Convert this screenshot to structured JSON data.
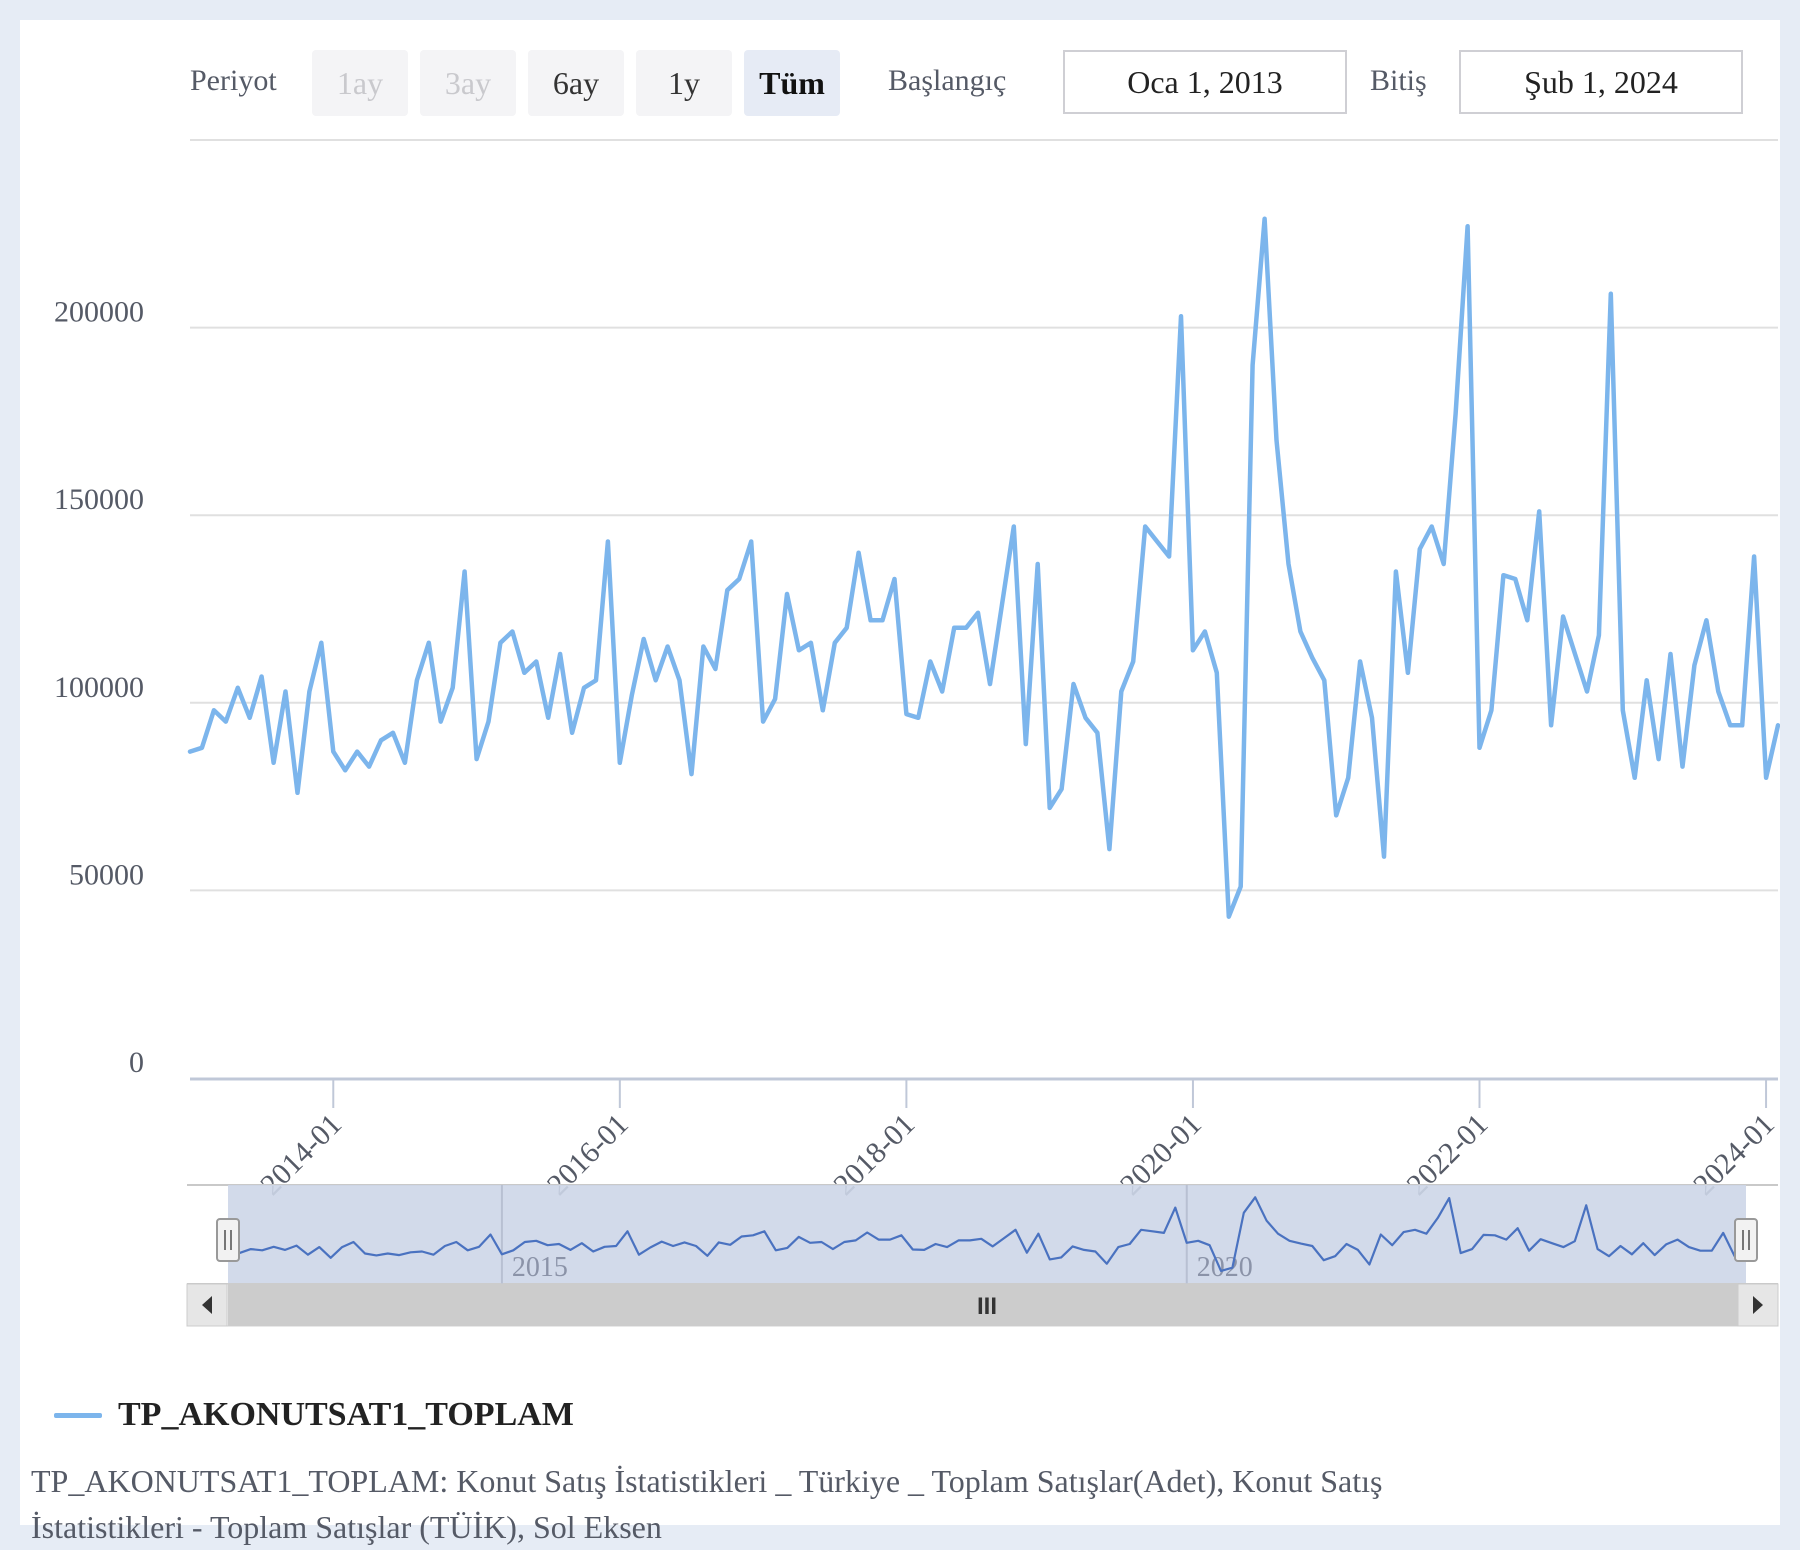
{
  "toolbar": {
    "period_label": "Periyot",
    "buttons": [
      "1ay",
      "3ay",
      "6ay",
      "1y",
      "Tüm"
    ],
    "start_label": "Başlangıç",
    "start_value": "Oca 1, 2013",
    "end_label": "Bitiş",
    "end_value": "Şub 1, 2024"
  },
  "chart_data": {
    "type": "line",
    "x_start": "2013-01",
    "x_end": "2024-02",
    "x_interval": "monthly",
    "ylim": [
      0,
      250000
    ],
    "yticks": [
      0,
      50000,
      100000,
      150000,
      200000
    ],
    "ytick_labels": [
      "0",
      "50000",
      "100000",
      "150000",
      "200000"
    ],
    "xtick_labels": [
      "2014-01",
      "2016-01",
      "2018-01",
      "2020-01",
      "2022-01",
      "2024-01"
    ],
    "grid": true,
    "legend": "bottom-left",
    "series": [
      {
        "name": "TP_AKONUTSAT1_TOPLAM",
        "color": "#7cb5ec",
        "values": [
          87000,
          88000,
          98000,
          95000,
          104000,
          96000,
          107000,
          84000,
          103000,
          76000,
          103000,
          116000,
          87000,
          82000,
          87000,
          83000,
          90000,
          92000,
          84000,
          106000,
          116000,
          95000,
          104000,
          135000,
          85000,
          95000,
          116000,
          119000,
          108000,
          111000,
          96000,
          113000,
          92000,
          104000,
          106000,
          143000,
          84000,
          102000,
          117000,
          106000,
          115000,
          106000,
          81000,
          115000,
          109000,
          130000,
          133000,
          143000,
          95000,
          101000,
          129000,
          114000,
          116000,
          98000,
          116000,
          120000,
          140000,
          122000,
          122000,
          133000,
          97000,
          96000,
          111000,
          103000,
          120000,
          120000,
          124000,
          105000,
          126000,
          147000,
          89000,
          137000,
          72000,
          77000,
          105000,
          96000,
          92000,
          61000,
          103000,
          111000,
          147000,
          143000,
          139000,
          203000,
          114000,
          119000,
          108000,
          43000,
          51000,
          190000,
          229000,
          170000,
          137000,
          119000,
          112000,
          106000,
          70000,
          80000,
          111000,
          96000,
          59000,
          135000,
          108000,
          141000,
          147000,
          137000,
          177000,
          227000,
          88000,
          98000,
          134000,
          133000,
          122000,
          151000,
          94000,
          123000,
          113000,
          103000,
          118000,
          209000,
          98000,
          80000,
          106000,
          85000,
          113000,
          83000,
          110000,
          122000,
          103000,
          94000,
          94000,
          139000,
          80000,
          94000
        ]
      }
    ],
    "navigator": {
      "labels": [
        "2015",
        "2020"
      ],
      "handles": [
        "left-handle",
        "right-handle"
      ],
      "scroll_icons": [
        "arrow-left-icon",
        "scroll-grip-icon",
        "arrow-right-icon"
      ],
      "grip_text": "III"
    }
  },
  "colors": {
    "series": "#7cb5ec",
    "navigator_line": "#4a72c0",
    "navigator_fill": "#cdd6e8",
    "grid": "#e0e0e0"
  },
  "legend": {
    "label": "TP_AKONUTSAT1_TOPLAM"
  },
  "footnote": "TP_AKONUTSAT1_TOPLAM: Konut Satış İstatistikleri _ Türkiye _ Toplam Satışlar(Adet), Konut Satış İstatistikleri - Toplam Satışlar (TÜİK), Sol Eksen"
}
